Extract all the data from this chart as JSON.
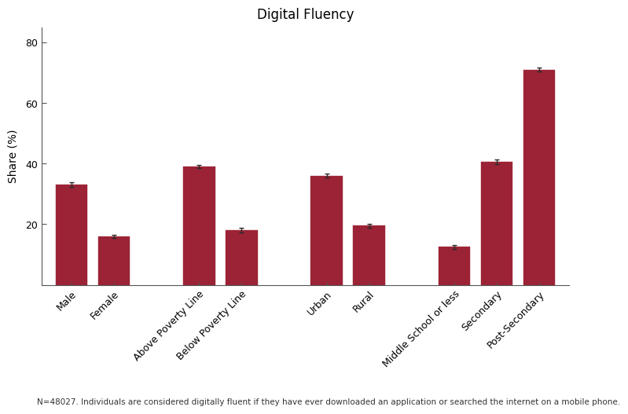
{
  "title": "Digital Fluency",
  "ylabel": "Share (%)",
  "ylim": [
    0,
    85
  ],
  "yticks": [
    20,
    40,
    60,
    80
  ],
  "bar_color": "#9B2335",
  "background_color": "#ffffff",
  "categories": [
    "Male",
    "Female",
    "Above Poverty Line",
    "Below Poverty Line",
    "Urban",
    "Rural",
    "Middle School or less",
    "Secondary",
    "Post-Secondary"
  ],
  "values": [
    33.0,
    16.0,
    39.0,
    18.0,
    36.0,
    19.5,
    12.5,
    40.5,
    71.0
  ],
  "errors": [
    0.8,
    0.6,
    0.6,
    0.7,
    0.6,
    0.7,
    0.7,
    0.8,
    0.7
  ],
  "group_gaps": [
    1,
    2,
    4,
    5,
    7,
    8,
    10,
    11,
    12
  ],
  "footnote": "N=48027. Individuals are considered digitally fluent if they have ever downloaded an application or searched the internet on a mobile phone.",
  "title_fontsize": 12,
  "axis_label_fontsize": 10,
  "tick_fontsize": 9,
  "footnote_fontsize": 7.5,
  "bar_width": 0.75
}
